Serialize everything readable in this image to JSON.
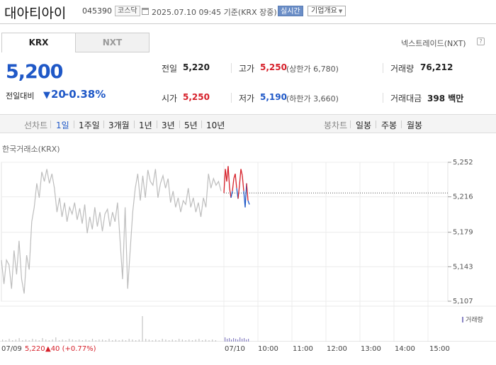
{
  "header": {
    "stock_name": "대아티아이",
    "stock_code": "045390",
    "market": "코스닥",
    "date_text": "2025.07.10 09:45 기준(KRX 장중)",
    "realtime_label": "실시간",
    "company_label": "기업개요"
  },
  "tabs": [
    {
      "label": "KRX",
      "active": true
    },
    {
      "label": "NXT",
      "active": false
    }
  ],
  "nxt_trade_label": "넥스트레이드(NXT)",
  "price": {
    "current": "5,200",
    "change_label": "전일대비",
    "change_value": "20",
    "change_rate": "-0.38%",
    "direction_icon": "down-triangle-icon",
    "color": "#1f58c7"
  },
  "info": {
    "prev_close": {
      "label": "전일",
      "value": "5,220"
    },
    "high": {
      "label": "고가",
      "value": "5,250",
      "sub": "(상한가 6,780)"
    },
    "volume": {
      "label": "거래량",
      "value": "76,212"
    },
    "open": {
      "label": "시가",
      "value": "5,250"
    },
    "low": {
      "label": "저가",
      "value": "5,190",
      "sub": "(하한가 3,660)"
    },
    "amount": {
      "label": "거래대금",
      "value": "398 백만"
    }
  },
  "period_bar": {
    "line_label": "선차트",
    "line_periods": [
      "1일",
      "1주일",
      "3개월",
      "1년",
      "3년",
      "5년",
      "10년"
    ],
    "active_period": "1일",
    "candle_label": "봉차트",
    "candle_periods": [
      "일봉",
      "주봉",
      "월봉"
    ]
  },
  "exchange_label": "한국거래소(KRX)",
  "colors": {
    "up": "#d6202a",
    "down": "#1f58c7",
    "prev_day_line": "#bdbdbd",
    "volume": "#8a84c4"
  },
  "chart_data": {
    "type": "line",
    "y_ticks": [
      "5,252",
      "5,216",
      "5,179",
      "5,143",
      "5,107"
    ],
    "ylim": [
      5107,
      5252
    ],
    "reference_price": 5220,
    "x_labels": [
      "07/09",
      "07/10",
      "10:00",
      "11:00",
      "12:00",
      "13:00",
      "14:00",
      "15:00"
    ],
    "prev_day": {
      "date": "07/09",
      "close": "5,220",
      "change": "▲40 (+0.77%)"
    },
    "prev_day_series": [
      5150,
      5125,
      5150,
      5145,
      5120,
      5160,
      5135,
      5170,
      5130,
      5115,
      5155,
      5140,
      5190,
      5205,
      5230,
      5215,
      5242,
      5232,
      5245,
      5230,
      5240,
      5225,
      5200,
      5215,
      5195,
      5210,
      5190,
      5205,
      5198,
      5210,
      5192,
      5204,
      5188,
      5208,
      5178,
      5195,
      5182,
      5205,
      5185,
      5200,
      5180,
      5198,
      5203,
      5185,
      5200,
      5190,
      5210,
      5170,
      5130,
      5205,
      5120,
      5160,
      5200,
      5225,
      5240,
      5212,
      5238,
      5215,
      5244,
      5232,
      5228,
      5245,
      5215,
      5230,
      5238,
      5225,
      5235,
      5210,
      5222,
      5205,
      5215,
      5200,
      5212,
      5208,
      5225,
      5205,
      5215,
      5200,
      5210,
      5195,
      5215,
      5205,
      5240,
      5225,
      5235,
      5228,
      5232,
      5222
    ],
    "today_series": [
      5220,
      5245,
      5232,
      5248,
      5225,
      5215,
      5222,
      5235,
      5240,
      5225,
      5214,
      5228,
      5245,
      5238,
      5222,
      5205,
      5230,
      5212,
      5208
    ]
  },
  "volume_label": "거래량"
}
